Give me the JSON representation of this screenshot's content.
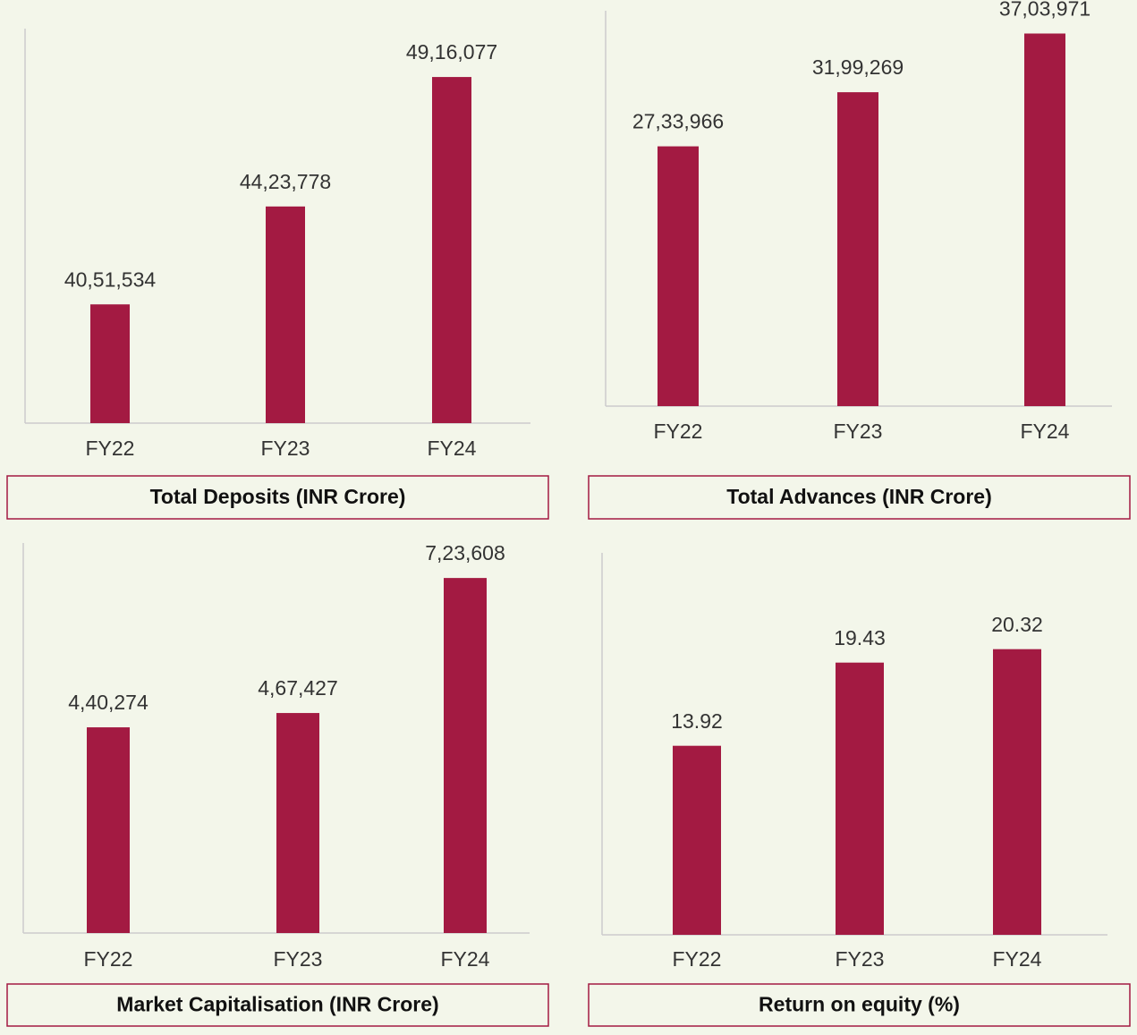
{
  "chart_data": [
    {
      "type": "bar",
      "title": "Total Deposits (INR Crore)",
      "categories": [
        "FY22",
        "FY23",
        "FY24"
      ],
      "values": [
        4051534,
        4423778,
        4916077
      ],
      "value_labels": [
        "40,51,534",
        "44,23,778",
        "49,16,077"
      ],
      "color": "#a31a42",
      "ylim": [
        3600000,
        5100000
      ]
    },
    {
      "type": "bar",
      "title": "Total Advances (INR Crore)",
      "categories": [
        "FY22",
        "FY23",
        "FY24"
      ],
      "values": [
        2733966,
        3199269,
        3703971
      ],
      "value_labels": [
        "27,33,966",
        "31,99,269",
        "37,03,971"
      ],
      "color": "#a31a42",
      "ylim": [
        500000,
        3900000
      ]
    },
    {
      "type": "bar",
      "title": "Market Capitalisation (INR Crore)",
      "categories": [
        "FY22",
        "FY23",
        "FY24"
      ],
      "values": [
        440274,
        467427,
        723608
      ],
      "value_labels": [
        "4,40,274",
        "4,67,427",
        "7,23,608"
      ],
      "color": "#a31a42",
      "ylim": [
        50000,
        790000
      ]
    },
    {
      "type": "bar",
      "title": "Return on equity (%)",
      "categories": [
        "FY22",
        "FY23",
        "FY24"
      ],
      "values": [
        13.92,
        19.43,
        20.32
      ],
      "color": "#a31a42",
      "ylim": [
        1.4,
        26.7
      ]
    }
  ]
}
